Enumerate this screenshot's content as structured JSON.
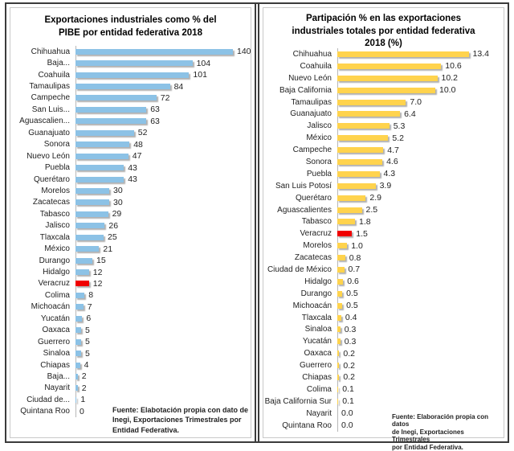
{
  "chart_data": [
    {
      "type": "bar",
      "orientation": "horizontal",
      "title": "Exportaciones industriales como % del PIBE por entidad federativa 2018",
      "title_lines": [
        "Exportaciones industriales como % del",
        "PIBE por entidad federativa 2018"
      ],
      "categories": [
        "Chihuahua",
        "Baja...",
        "Coahuila",
        "Tamaulipas",
        "Campeche",
        "San Luis...",
        "Aguascalien...",
        "Guanajuato",
        "Sonora",
        "Nuevo León",
        "Puebla",
        "Querétaro",
        "Morelos",
        "Zacatecas",
        "Tabasco",
        "Jalisco",
        "Tlaxcala",
        "México",
        "Durango",
        "Hidalgo",
        "Veracruz",
        "Colima",
        "Michoacán",
        "Yucatán",
        "Oaxaca",
        "Guerrero",
        "Sinaloa",
        "Chiapas",
        "Baja...",
        "Nayarit",
        "Ciudad de...",
        "Quintana Roo"
      ],
      "values": [
        140,
        104,
        101,
        84,
        72,
        63,
        63,
        52,
        48,
        47,
        43,
        43,
        30,
        30,
        29,
        26,
        25,
        21,
        15,
        12,
        12,
        8,
        7,
        6,
        5,
        5,
        5,
        4,
        2,
        2,
        1,
        0
      ],
      "value_labels": [
        "140",
        "104",
        "101",
        "84",
        "72",
        "63",
        "63",
        "52",
        "48",
        "47",
        "43",
        "43",
        "30",
        "30",
        "29",
        "26",
        "25",
        "21",
        "15",
        "12",
        "12",
        "8",
        "7",
        "6",
        "5",
        "5",
        "5",
        "4",
        "2",
        "2",
        "1",
        "0"
      ],
      "xlim": [
        0,
        140
      ],
      "grid": false,
      "legend": false,
      "bar_color": "#8cc2e6",
      "highlight_color": "#f00000",
      "highlight_index": 20,
      "highlight_category": "Veracruz",
      "source_lines": [
        "Fuente: Elabotación propia con dato de",
        "Inegi, Exportaciones Trimestrales por",
        "Entidad Federativa."
      ]
    },
    {
      "type": "bar",
      "orientation": "horizontal",
      "title": "Partipación % en las exportaciones industriales totales por entidad federativa 2018 (%)",
      "title_lines": [
        "Partipación % en las exportaciones",
        "industriales totales por entidad federativa",
        "2018 (%)"
      ],
      "categories": [
        "Chihuahua",
        "Coahuila",
        "Nuevo León",
        "Baja California",
        "Tamaulipas",
        "Guanajuato",
        "Jalisco",
        "México",
        "Campeche",
        "Sonora",
        "Puebla",
        "San Luis Potosí",
        "Querétaro",
        "Aguascalientes",
        "Tabasco",
        "Veracruz",
        "Morelos",
        "Zacatecas",
        "Ciudad de México",
        "Hidalgo",
        "Durango",
        "Michoacán",
        "Tlaxcala",
        "Sinaloa",
        "Yucatán",
        "Oaxaca",
        "Guerrero",
        "Chiapas",
        "Colima",
        "Baja California Sur",
        "Nayarit",
        "Quintana Roo"
      ],
      "values": [
        13.4,
        10.6,
        10.2,
        10.0,
        7.0,
        6.4,
        5.3,
        5.2,
        4.7,
        4.6,
        4.3,
        3.9,
        2.9,
        2.5,
        1.8,
        1.5,
        1.0,
        0.8,
        0.7,
        0.6,
        0.5,
        0.5,
        0.4,
        0.3,
        0.3,
        0.2,
        0.2,
        0.2,
        0.1,
        0.1,
        0.0,
        0.0
      ],
      "value_labels": [
        "13.4",
        "10.6",
        "10.2",
        "10.0",
        "7.0",
        "6.4",
        "5.3",
        "5.2",
        "4.7",
        "4.6",
        "4.3",
        "3.9",
        "2.9",
        "2.5",
        "1.8",
        "1.5",
        "1.0",
        "0.8",
        "0.7",
        "0.6",
        "0.5",
        "0.5",
        "0.4",
        "0.3",
        "0.3",
        "0.2",
        "0.2",
        "0.2",
        "0.1",
        "0.1",
        "0.0",
        "0.0"
      ],
      "xlim": [
        0,
        13.4
      ],
      "grid": false,
      "legend": false,
      "bar_color": "#ffd34d",
      "highlight_color": "#f00000",
      "highlight_index": 15,
      "highlight_category": "Veracruz",
      "source_lines": [
        "Fuente: Elaboración propia con datos",
        "de Inegi, Exportaciones Trimestrales",
        "por Entidad Federativa."
      ]
    }
  ]
}
